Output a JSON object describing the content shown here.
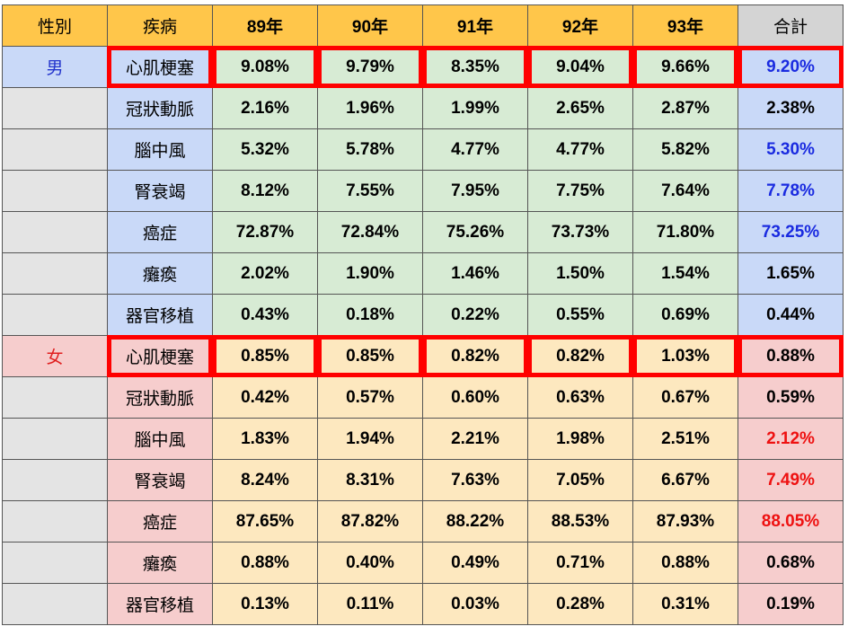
{
  "header": {
    "sex": "性別",
    "disease": "疾病",
    "years": [
      "89年",
      "90年",
      "91年",
      "92年",
      "93年"
    ],
    "total": "合計"
  },
  "rows": [
    {
      "sex": "男",
      "disease": "心肌梗塞",
      "values": [
        "9.08%",
        "9.79%",
        "8.35%",
        "9.04%",
        "9.66%"
      ],
      "total": "9.20%"
    },
    {
      "sex": "",
      "disease": "冠狀動脈",
      "values": [
        "2.16%",
        "1.96%",
        "1.99%",
        "2.65%",
        "2.87%"
      ],
      "total": "2.38%"
    },
    {
      "sex": "",
      "disease": "腦中風",
      "values": [
        "5.32%",
        "5.78%",
        "4.77%",
        "4.77%",
        "5.82%"
      ],
      "total": "5.30%"
    },
    {
      "sex": "",
      "disease": "腎衰竭",
      "values": [
        "8.12%",
        "7.55%",
        "7.95%",
        "7.75%",
        "7.64%"
      ],
      "total": "7.78%"
    },
    {
      "sex": "",
      "disease": "癌症",
      "values": [
        "72.87%",
        "72.84%",
        "75.26%",
        "73.73%",
        "71.80%"
      ],
      "total": "73.25%"
    },
    {
      "sex": "",
      "disease": "癱瘓",
      "values": [
        "2.02%",
        "1.90%",
        "1.46%",
        "1.50%",
        "1.54%"
      ],
      "total": "1.65%"
    },
    {
      "sex": "",
      "disease": "器官移植",
      "values": [
        "0.43%",
        "0.18%",
        "0.22%",
        "0.55%",
        "0.69%"
      ],
      "total": "0.44%"
    },
    {
      "sex": "女",
      "disease": "心肌梗塞",
      "values": [
        "0.85%",
        "0.85%",
        "0.82%",
        "0.82%",
        "1.03%"
      ],
      "total": "0.88%"
    },
    {
      "sex": "",
      "disease": "冠狀動脈",
      "values": [
        "0.42%",
        "0.57%",
        "0.60%",
        "0.63%",
        "0.67%"
      ],
      "total": "0.59%"
    },
    {
      "sex": "",
      "disease": "腦中風",
      "values": [
        "1.83%",
        "1.94%",
        "2.21%",
        "1.98%",
        "2.51%"
      ],
      "total": "2.12%"
    },
    {
      "sex": "",
      "disease": "腎衰竭",
      "values": [
        "8.24%",
        "8.31%",
        "7.63%",
        "7.05%",
        "6.67%"
      ],
      "total": "7.49%"
    },
    {
      "sex": "",
      "disease": "癌症",
      "values": [
        "87.65%",
        "87.82%",
        "88.22%",
        "88.53%",
        "87.93%"
      ],
      "total": "88.05%"
    },
    {
      "sex": "",
      "disease": "癱瘓",
      "values": [
        "0.88%",
        "0.40%",
        "0.49%",
        "0.71%",
        "0.88%"
      ],
      "total": "0.68%"
    },
    {
      "sex": "",
      "disease": "器官移植",
      "values": [
        "0.13%",
        "0.11%",
        "0.03%",
        "0.28%",
        "0.31%"
      ],
      "total": "0.19%"
    }
  ],
  "colors": {
    "header": "#ffc64a",
    "header_total": "#d4d4d4",
    "male_label": "#c9d9f8",
    "female_label": "#f6cdcd",
    "male_values": "#d7ebd4",
    "female_values": "#fde8bf",
    "highlight_box": "#ff0000",
    "male_total_text": "#1a2be0",
    "female_total_text": "#ee1111"
  }
}
